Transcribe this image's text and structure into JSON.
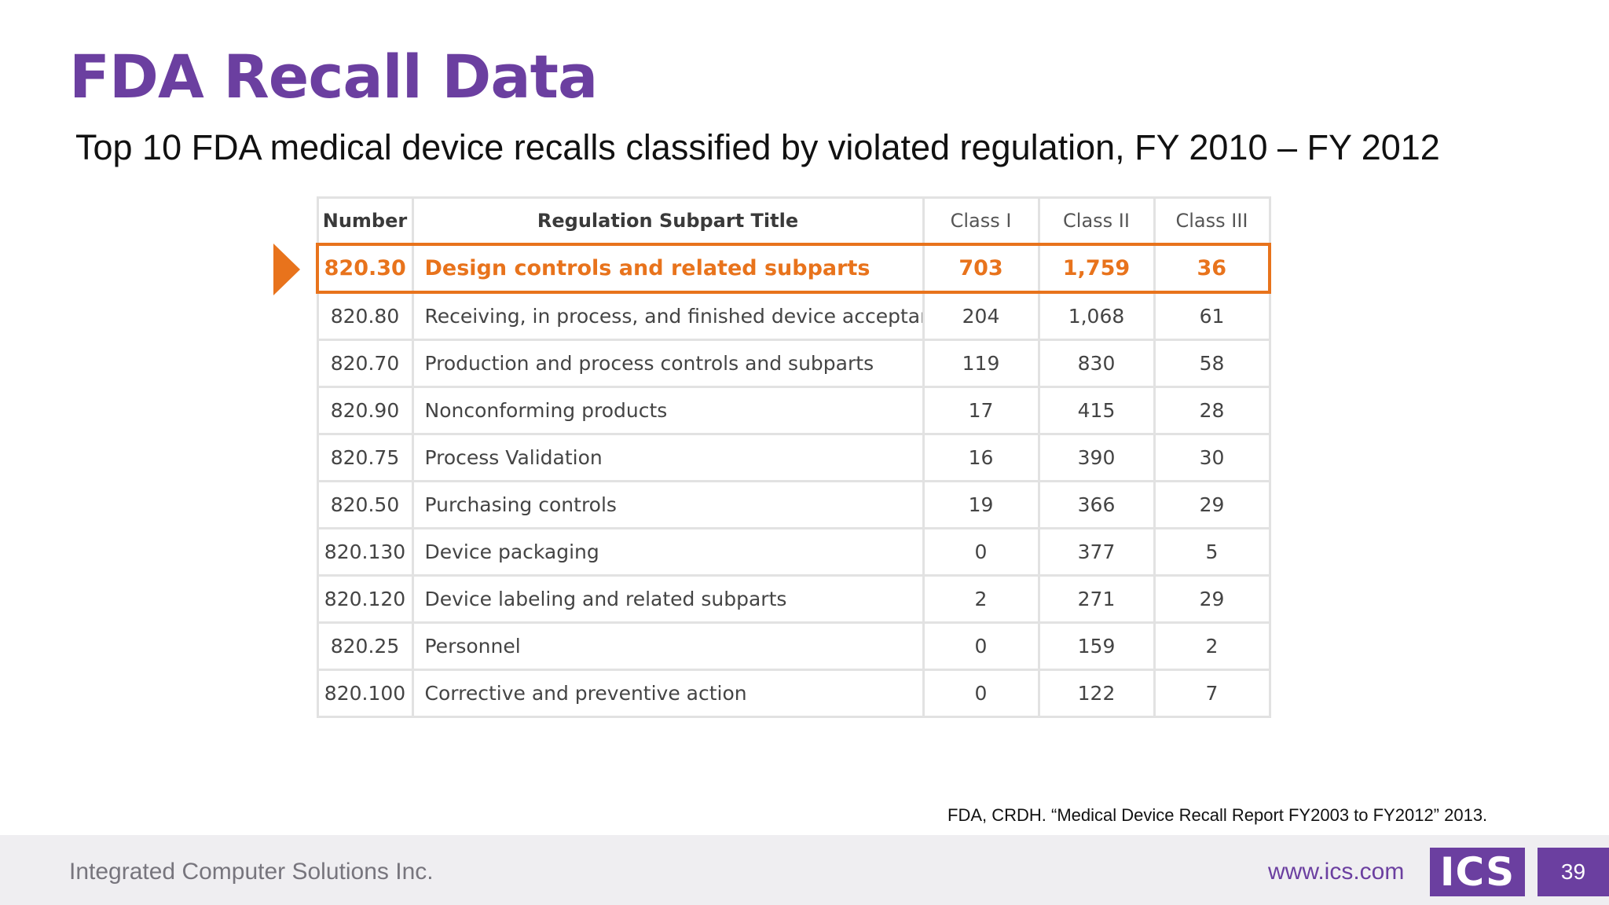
{
  "slide": {
    "title": "FDA Recall Data",
    "subtitle": "Top 10 FDA medical device recalls classified by violated regulation, FY 2010 – FY 2012",
    "citation": "FDA, CRDH. “Medical Device Recall Report FY2003 to FY2012” 2013."
  },
  "table": {
    "headers": [
      "Number",
      "Regulation Subpart Title",
      "Class I",
      "Class II",
      "Class III"
    ],
    "rows": [
      [
        "820.30",
        "Design controls and related subparts",
        "703",
        "1,759",
        "36"
      ],
      [
        "820.80",
        "Receiving, in process, and finished device acceptance",
        "204",
        "1,068",
        "61"
      ],
      [
        "820.70",
        "Production and process controls and subparts",
        "119",
        "830",
        "58"
      ],
      [
        "820.90",
        "Nonconforming products",
        "17",
        "415",
        "28"
      ],
      [
        "820.75",
        "Process Validation",
        "16",
        "390",
        "30"
      ],
      [
        "820.50",
        "Purchasing controls",
        "19",
        "366",
        "29"
      ],
      [
        "820.130",
        "Device packaging",
        "0",
        "377",
        "5"
      ],
      [
        "820.120",
        "Device labeling and related subparts",
        "2",
        "271",
        "29"
      ],
      [
        "820.25",
        "Personnel",
        "0",
        "159",
        "2"
      ],
      [
        "820.100",
        "Corrective and preventive action",
        "0",
        "122",
        "7"
      ]
    ],
    "highlight_color": "#e8731c"
  },
  "footer": {
    "company": "Integrated Computer Solutions Inc.",
    "url": "www.ics.com",
    "logo": "ICS",
    "page_number": "39"
  },
  "colors": {
    "brand_purple": "#6b3fa0",
    "accent_orange": "#e8731c"
  }
}
